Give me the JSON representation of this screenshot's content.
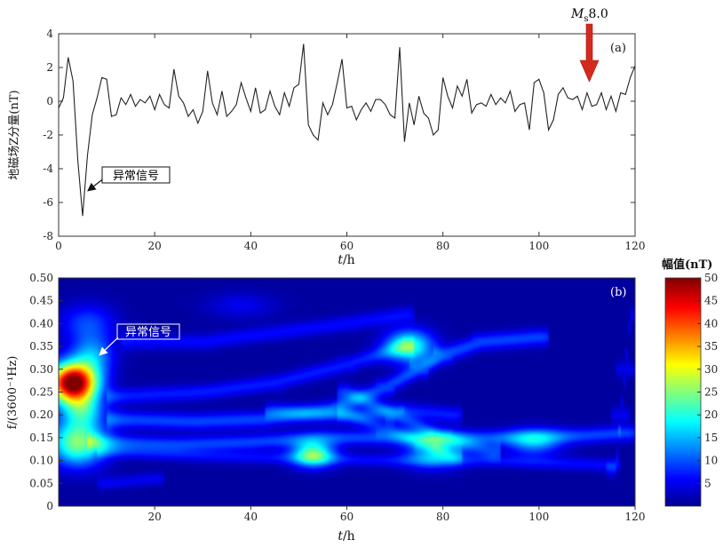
{
  "chart_data": [
    {
      "type": "line",
      "panel_label": "(a)",
      "ylabel": "地磁场Z分量(nT)",
      "xlabel_italic": "t",
      "xlabel_rest": "/h",
      "xlim": [
        0,
        120
      ],
      "ylim": [
        -8,
        4
      ],
      "x_ticks": [
        "0",
        "20",
        "40",
        "60",
        "80",
        "100",
        "120"
      ],
      "y_ticks": [
        "4",
        "2",
        "0",
        "-2",
        "-4",
        "-6",
        "-8"
      ],
      "series": [
        {
          "x": [
            0,
            1,
            2,
            3,
            4,
            5,
            6,
            7,
            8,
            9,
            10,
            11,
            12,
            13,
            14,
            15,
            16,
            17,
            18,
            19,
            20,
            21,
            22,
            23,
            24,
            25,
            26,
            27,
            28,
            29,
            30,
            31,
            32,
            33,
            34,
            35,
            36,
            37,
            38,
            39,
            40,
            41,
            42,
            43,
            44,
            45,
            46,
            47,
            48,
            49,
            50,
            51,
            52,
            53,
            54,
            55,
            56,
            57,
            58,
            59,
            60,
            61,
            62,
            63,
            64,
            65,
            66,
            67,
            68,
            69,
            70,
            71,
            72,
            73,
            74,
            75,
            76,
            77,
            78,
            79,
            80,
            81,
            82,
            83,
            84,
            85,
            86,
            87,
            88,
            89,
            90,
            91,
            92,
            93,
            94,
            95,
            96,
            97,
            98,
            99,
            100,
            101,
            102,
            103,
            104,
            105,
            106,
            107,
            108,
            109,
            110,
            111,
            112,
            113,
            114,
            115,
            116,
            117,
            118,
            119,
            120
          ],
          "y": [
            -0.4,
            0.2,
            2.6,
            1.2,
            -3.5,
            -6.8,
            -3.2,
            -0.8,
            0.2,
            1.4,
            1.3,
            -0.9,
            -0.8,
            0.2,
            -0.2,
            0.4,
            -0.3,
            0.1,
            -0.1,
            0.3,
            -0.5,
            0.4,
            -0.2,
            -0.4,
            1.9,
            0.3,
            -0.1,
            -0.9,
            -0.5,
            -1.3,
            -0.6,
            1.8,
            -0.1,
            -0.8,
            0.6,
            -0.9,
            -0.6,
            -0.2,
            1.1,
            0.2,
            -0.6,
            0.8,
            -0.7,
            -0.5,
            0.6,
            -0.3,
            -0.8,
            0.5,
            -0.3,
            0.8,
            1.0,
            3.4,
            -1.4,
            -2.0,
            -2.3,
            -0.1,
            -0.8,
            -0.2,
            1.1,
            2.5,
            -0.4,
            -0.3,
            -1.1,
            -0.5,
            -0.1,
            -0.6,
            0.1,
            0.1,
            -0.2,
            -0.8,
            -1.0,
            3.2,
            -2.4,
            -0.1,
            -1.4,
            0.3,
            -0.7,
            -1.0,
            -2.0,
            -1.7,
            1.4,
            0.3,
            -0.4,
            0.9,
            0.3,
            1.3,
            -0.7,
            -0.2,
            -0.1,
            -0.3,
            0.4,
            -0.2,
            0.2,
            -0.1,
            0.6,
            -0.6,
            -0.2,
            -0.1,
            -1.7,
            1.1,
            1.3,
            0.5,
            -1.7,
            -1.1,
            0.4,
            0.8,
            0.2,
            0.1,
            0.3,
            -0.5,
            0.5,
            -0.3,
            -0.2,
            0.5,
            -0.5,
            0.3,
            -0.6,
            0.5,
            0.4,
            1.4,
            2.1
          ]
        }
      ],
      "annotations": [
        {
          "text": "异常信号",
          "x": 5,
          "y": -6.8
        },
        {
          "text_main": "M",
          "text_sub": "s",
          "text_tail": "8.0",
          "x": 111,
          "y": 1.0,
          "arrow_color": "#d42a1e"
        }
      ]
    },
    {
      "type": "heatmap",
      "panel_label": "(b)",
      "ylabel": "f/(3600⁻¹Hz)",
      "xlabel_italic": "t",
      "xlabel_rest": "/h",
      "xlim": [
        0,
        120
      ],
      "ylim": [
        0,
        0.5
      ],
      "x_ticks": [
        "20",
        "40",
        "60",
        "80",
        "100",
        "120"
      ],
      "y_ticks": [
        "0.50",
        "0.45",
        "0.40",
        "0.35",
        "0.30",
        "0.25",
        "0.20",
        "0.15",
        "0.10",
        "0.05",
        "0"
      ],
      "colorbar": {
        "title": "幅值(nT)",
        "range": [
          0,
          50
        ],
        "ticks": [
          "50",
          "45",
          "40",
          "35",
          "30",
          "25",
          "20",
          "15",
          "10",
          "5"
        ]
      },
      "blobs": [
        {
          "t": 3,
          "f": 0.27,
          "amp": 52,
          "st": 3.5,
          "sf": 0.03
        },
        {
          "t": 4,
          "f": 0.14,
          "amp": 24,
          "st": 4,
          "sf": 0.035
        },
        {
          "t": 5,
          "f": 0.21,
          "amp": 14,
          "st": 3,
          "sf": 0.025
        },
        {
          "t": 7,
          "f": 0.33,
          "amp": 12,
          "st": 3,
          "sf": 0.03
        },
        {
          "t": 6,
          "f": 0.4,
          "amp": 8,
          "st": 4,
          "sf": 0.03
        },
        {
          "t": 53,
          "f": 0.115,
          "amp": 22,
          "st": 3,
          "sf": 0.02
        },
        {
          "t": 73,
          "f": 0.35,
          "amp": 20,
          "st": 3.5,
          "sf": 0.025
        },
        {
          "t": 78,
          "f": 0.12,
          "amp": 13,
          "st": 4,
          "sf": 0.025
        },
        {
          "t": 99,
          "f": 0.14,
          "amp": 12,
          "st": 4,
          "sf": 0.02
        },
        {
          "t": 38,
          "f": 0.44,
          "amp": 4,
          "st": 5,
          "sf": 0.02
        }
      ],
      "ridges": [
        {
          "pts": [
            [
              8,
              0.14
            ],
            [
              25,
              0.135
            ],
            [
              40,
              0.14
            ],
            [
              55,
              0.15
            ],
            [
              70,
              0.15
            ],
            [
              90,
              0.15
            ],
            [
              110,
              0.155
            ],
            [
              118,
              0.16
            ]
          ],
          "amp": 8,
          "w": 0.012
        },
        {
          "pts": [
            [
              10,
              0.12
            ],
            [
              30,
              0.11
            ],
            [
              50,
              0.105
            ],
            [
              70,
              0.1
            ],
            [
              90,
              0.1
            ],
            [
              115,
              0.09
            ]
          ],
          "amp": 5,
          "w": 0.01
        },
        {
          "pts": [
            [
              12,
              0.19
            ],
            [
              28,
              0.185
            ],
            [
              42,
              0.19
            ],
            [
              56,
              0.21
            ],
            [
              68,
              0.26
            ],
            [
              75,
              0.3
            ],
            [
              80,
              0.33
            ],
            [
              88,
              0.36
            ],
            [
              100,
              0.37
            ]
          ],
          "amp": 8,
          "w": 0.013
        },
        {
          "pts": [
            [
              12,
              0.24
            ],
            [
              30,
              0.25
            ],
            [
              45,
              0.27
            ],
            [
              60,
              0.31
            ],
            [
              72,
              0.35
            ]
          ],
          "amp": 6,
          "w": 0.012
        },
        {
          "pts": [
            [
              15,
              0.36
            ],
            [
              30,
              0.36
            ],
            [
              45,
              0.38
            ],
            [
              60,
              0.4
            ],
            [
              72,
              0.42
            ]
          ],
          "amp": 5,
          "w": 0.012
        },
        {
          "pts": [
            [
              60,
              0.25
            ],
            [
              70,
              0.2
            ],
            [
              80,
              0.15
            ],
            [
              90,
              0.12
            ]
          ],
          "amp": 7,
          "w": 0.013
        },
        {
          "pts": [
            [
              60,
              0.2
            ],
            [
              68,
              0.17
            ],
            [
              76,
              0.14
            ],
            [
              82,
              0.11
            ]
          ],
          "amp": 6,
          "w": 0.012
        },
        {
          "pts": [
            [
              45,
              0.21
            ],
            [
              55,
              0.2
            ],
            [
              63,
              0.2
            ],
            [
              72,
              0.21
            ],
            [
              82,
              0.2
            ]
          ],
          "amp": 6,
          "w": 0.012
        },
        {
          "pts": [
            [
              10,
              0.05
            ],
            [
              20,
              0.06
            ]
          ],
          "amp": 4,
          "w": 0.01
        },
        {
          "pts": [
            [
              116,
              0.08
            ],
            [
              117,
              0.2
            ],
            [
              118,
              0.3
            ],
            [
              119,
              0.42
            ]
          ],
          "amp": 4,
          "w": 0.012
        }
      ],
      "annotations": [
        {
          "text": "异常信号",
          "x": 9,
          "y": 0.31
        }
      ]
    }
  ]
}
